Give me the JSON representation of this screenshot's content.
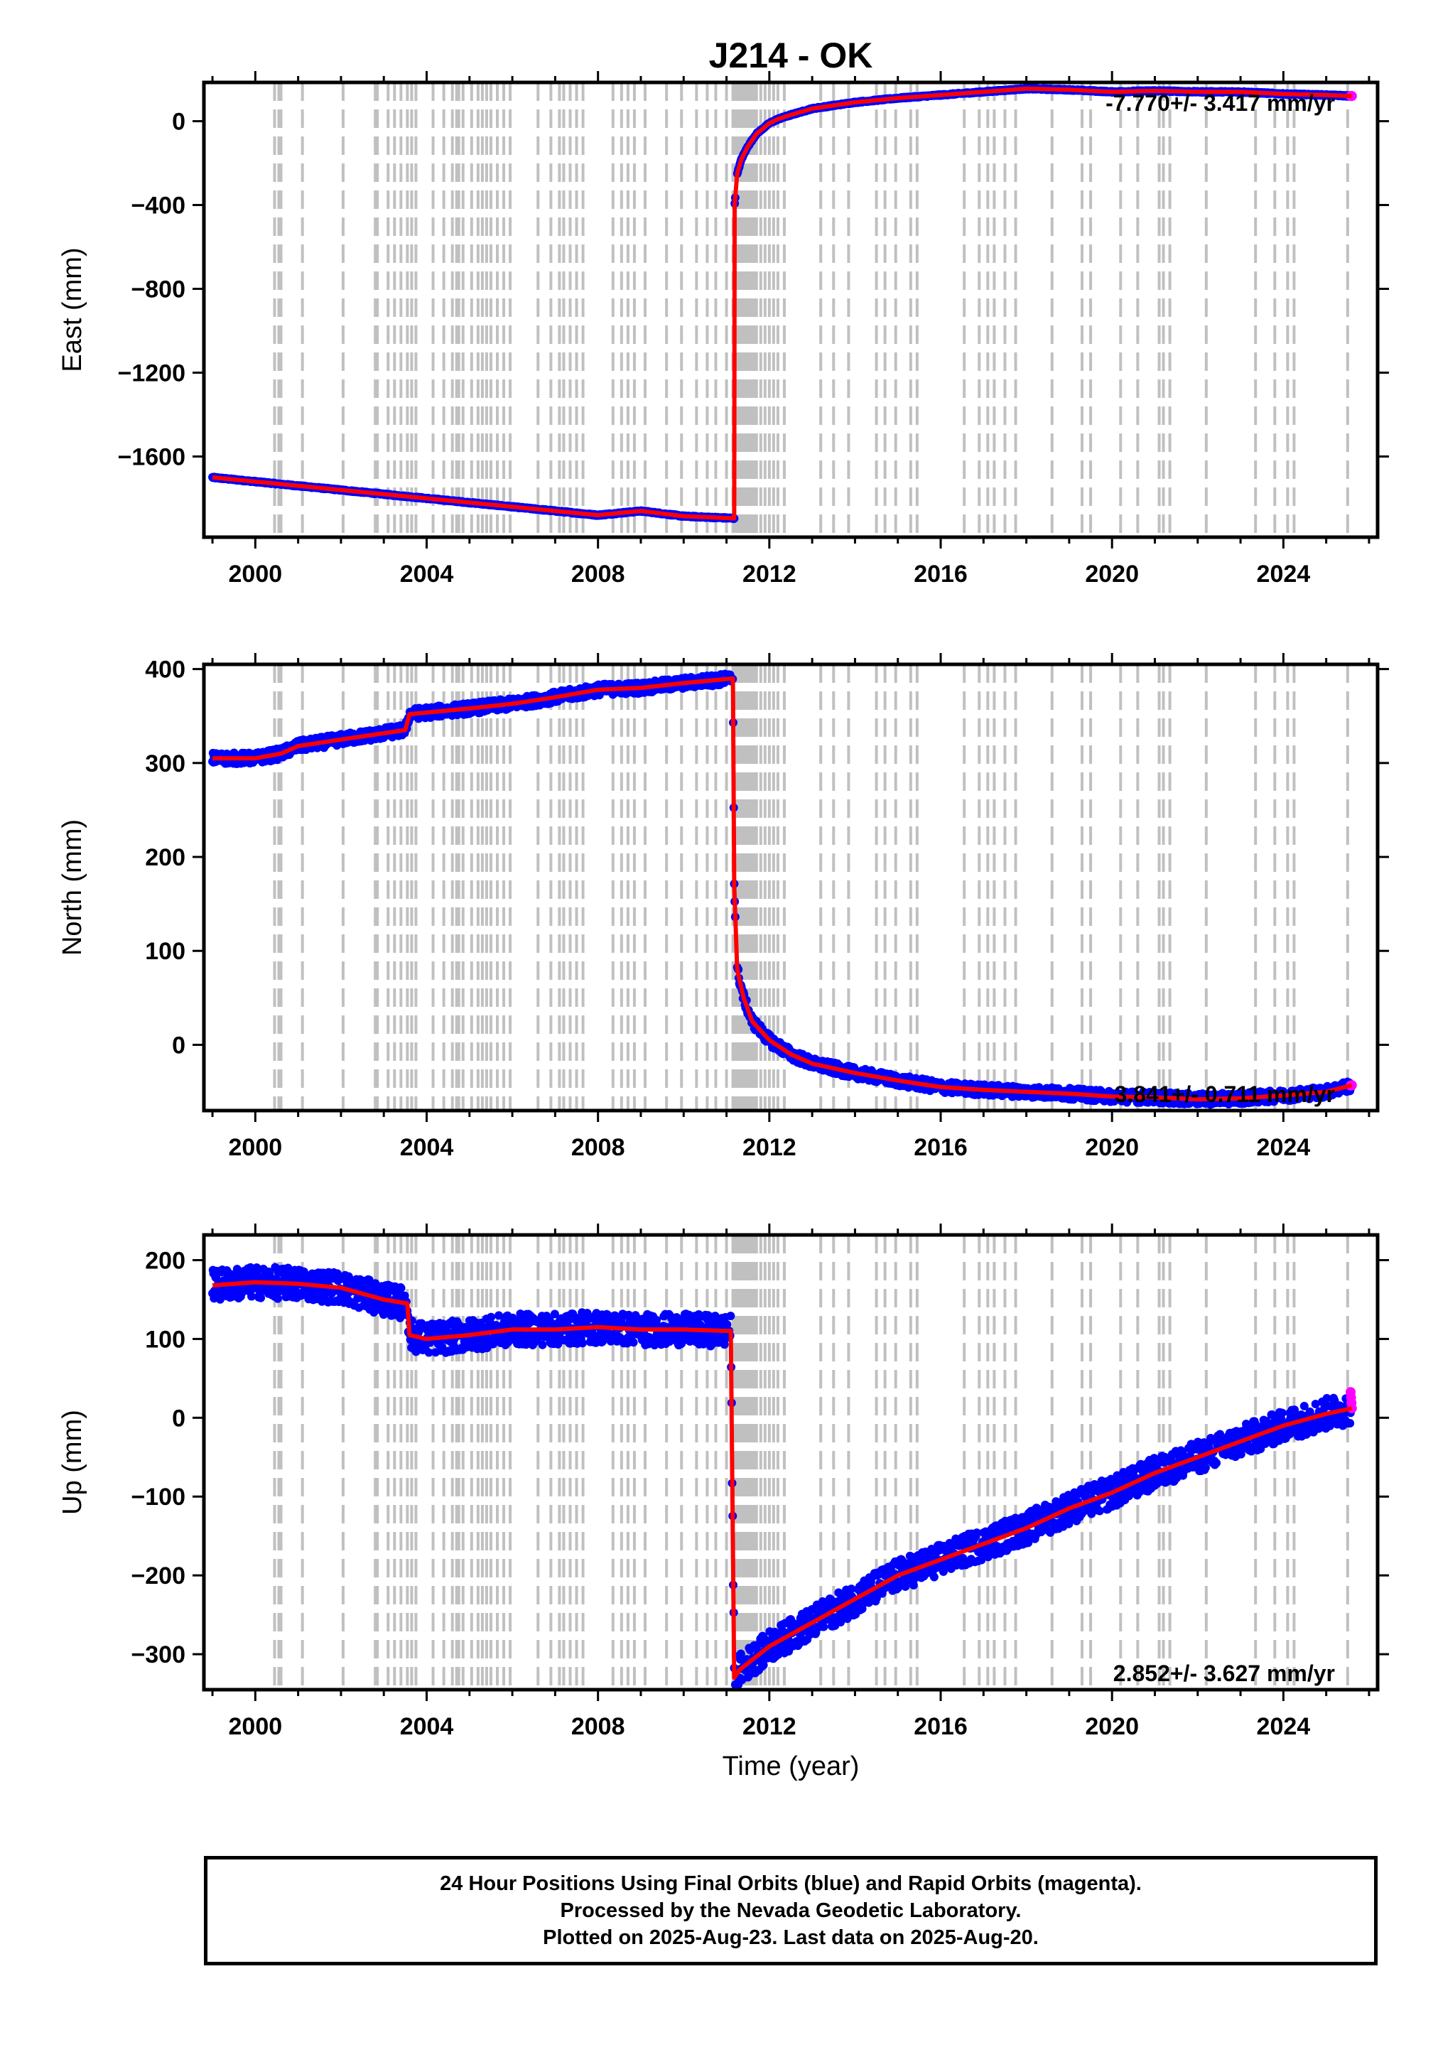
{
  "title": "J214 - OK",
  "colors": {
    "final_orbits": "#0000ff",
    "rapid_orbits": "#ff00ff",
    "model_fit": "#ff0000",
    "event_lines": "#c0c0c0"
  },
  "x_axis": {
    "label": "Time (year)",
    "range": [
      1998.8,
      2026.2
    ],
    "ticks": [
      2000,
      2004,
      2008,
      2012,
      2016,
      2020,
      2024
    ],
    "tick_labels": [
      "2000",
      "2004",
      "2008",
      "2012",
      "2016",
      "2020",
      "2024"
    ]
  },
  "event_line_years": [
    2000.45,
    2000.55,
    2000.6,
    2001.1,
    2002.05,
    2002.8,
    2002.85,
    2003.1,
    2003.25,
    2003.4,
    2003.55,
    2003.65,
    2003.75,
    2004.15,
    2004.4,
    2004.6,
    2004.7,
    2004.75,
    2004.85,
    2005.05,
    2005.2,
    2005.3,
    2005.4,
    2005.5,
    2005.65,
    2005.8,
    2005.95,
    2006.6,
    2006.9,
    2007.1,
    2007.2,
    2007.35,
    2007.5,
    2007.65,
    2008.35,
    2008.55,
    2008.7,
    2008.85,
    2009.1,
    2009.6,
    2009.95,
    2010.3,
    2010.55,
    2010.75,
    2011.0,
    2011.15,
    2011.2,
    2011.25,
    2011.3,
    2011.35,
    2011.4,
    2011.45,
    2011.5,
    2011.55,
    2011.6,
    2011.65,
    2011.7,
    2011.8,
    2011.9,
    2012.0,
    2012.1,
    2012.2,
    2012.35,
    2013.2,
    2013.5,
    2013.85,
    2014.5,
    2014.7,
    2014.95,
    2015.3,
    2015.45,
    2016.55,
    2016.9,
    2017.1,
    2017.25,
    2017.5,
    2017.75,
    2018.6,
    2019.3,
    2019.5,
    2020.2,
    2020.6,
    2021.1,
    2021.2,
    2021.35,
    2022.2,
    2023.35,
    2023.8,
    2024.1,
    2024.25,
    2025.5
  ],
  "chart_data": [
    {
      "type": "scatter",
      "ylabel": "East (mm)",
      "ylim": [
        -1985,
        185
      ],
      "yticks": [
        0,
        -400,
        -800,
        -1200,
        -1600
      ],
      "rate_label": "-7.770+/- 3.417 mm/yr",
      "rate_position": "top-right",
      "x": [
        1999.0,
        2000.0,
        2002.0,
        2004.0,
        2006.0,
        2008.0,
        2009.0,
        2010.0,
        2011.18,
        2011.19,
        2011.25,
        2011.35,
        2011.5,
        2011.7,
        2012.0,
        2012.2,
        2012.5,
        2013.0,
        2014.0,
        2015.0,
        2016.0,
        2017.0,
        2018.0,
        2019.0,
        2020.0,
        2021.0,
        2022.0,
        2023.0,
        2024.0,
        2025.0,
        2025.6
      ],
      "values": [
        -1700,
        -1720,
        -1760,
        -1800,
        -1840,
        -1880,
        -1860,
        -1885,
        -1895,
        -400,
        -250,
        -180,
        -120,
        -60,
        -10,
        10,
        30,
        60,
        90,
        110,
        125,
        140,
        155,
        150,
        140,
        145,
        140,
        140,
        130,
        125,
        120
      ]
    },
    {
      "type": "scatter",
      "ylabel": "North (mm)",
      "ylim": [
        -70,
        405
      ],
      "yticks": [
        0,
        100,
        200,
        300,
        400
      ],
      "rate_label": "3.841+/- 0.711 mm/yr",
      "rate_position": "bottom-right",
      "x": [
        1999.0,
        2000.0,
        2000.6,
        2001.0,
        2002.0,
        2003.5,
        2003.6,
        2005.0,
        2006.0,
        2007.0,
        2008.0,
        2009.0,
        2010.0,
        2011.15,
        2011.18,
        2011.25,
        2011.4,
        2011.6,
        2012.0,
        2012.5,
        2013.0,
        2014.0,
        2015.0,
        2016.0,
        2017.0,
        2018.0,
        2019.0,
        2020.0,
        2021.0,
        2022.0,
        2023.0,
        2024.0,
        2025.0,
        2025.6
      ],
      "values": [
        305,
        305,
        310,
        318,
        325,
        335,
        352,
        358,
        363,
        370,
        378,
        380,
        385,
        390,
        170,
        80,
        50,
        25,
        5,
        -10,
        -20,
        -30,
        -38,
        -45,
        -48,
        -50,
        -52,
        -55,
        -56,
        -58,
        -57,
        -54,
        -50,
        -43
      ]
    },
    {
      "type": "scatter",
      "ylabel": "Up (mm)",
      "ylim": [
        -345,
        232
      ],
      "yticks": [
        200,
        100,
        0,
        -100,
        -200,
        -300
      ],
      "rate_label": "2.852+/- 3.627 mm/yr",
      "rate_position": "bottom-right",
      "x": [
        1999.0,
        2000.0,
        2001.0,
        2002.0,
        2003.0,
        2003.55,
        2003.6,
        2004.0,
        2005.0,
        2006.0,
        2007.0,
        2008.0,
        2009.0,
        2010.0,
        2011.1,
        2011.18,
        2011.3,
        2012.0,
        2013.0,
        2014.0,
        2015.0,
        2016.0,
        2017.0,
        2018.0,
        2019.0,
        2020.0,
        2021.0,
        2022.0,
        2023.0,
        2024.0,
        2025.0,
        2025.6
      ],
      "values": [
        168,
        172,
        170,
        165,
        150,
        145,
        105,
        100,
        105,
        112,
        112,
        115,
        112,
        112,
        110,
        -330,
        -320,
        -290,
        -260,
        -230,
        -200,
        -180,
        -160,
        -140,
        -115,
        -95,
        -70,
        -50,
        -30,
        -10,
        5,
        12
      ]
    }
  ],
  "footer": {
    "line1": "24 Hour Positions Using Final Orbits (blue) and Rapid Orbits (magenta).",
    "line2": "Processed by the Nevada Geodetic Laboratory.",
    "line3": "Plotted on 2025-Aug-23. Last data on 2025-Aug-20."
  }
}
